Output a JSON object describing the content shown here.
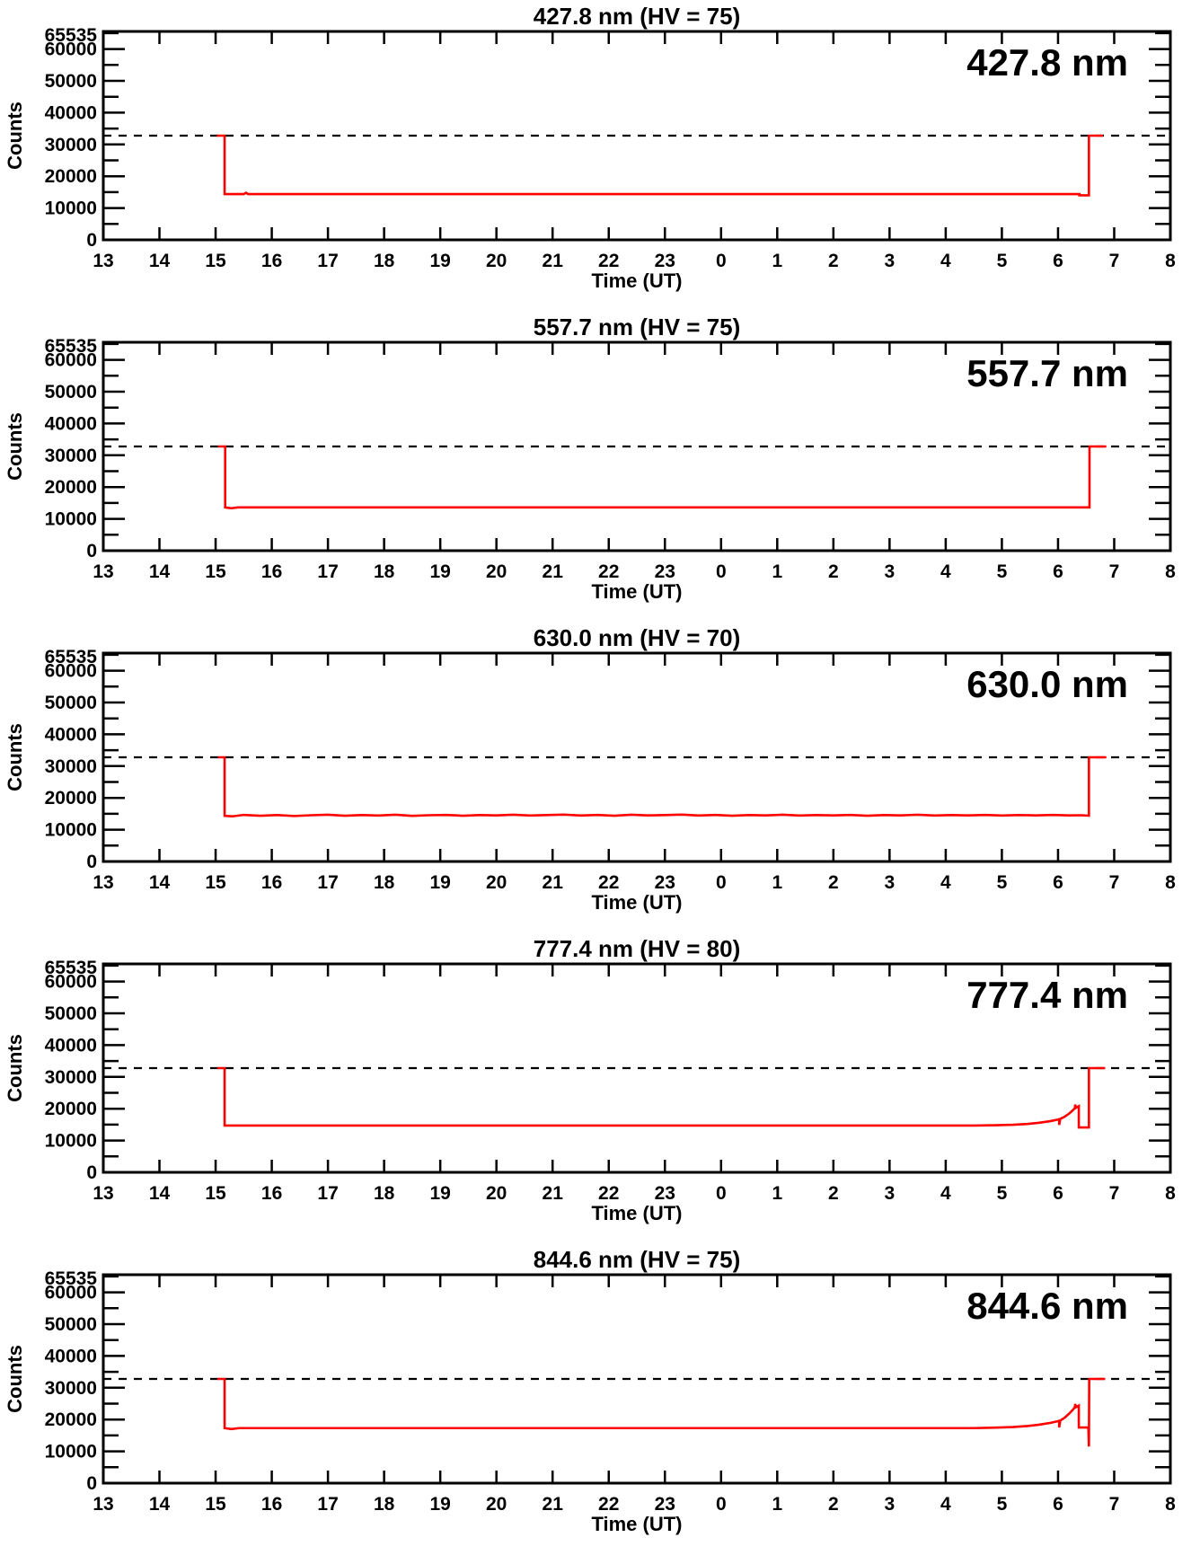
{
  "page": {
    "background": "#ffffff"
  },
  "chart_data": {
    "type": "line",
    "xlabel": "Time (UT)",
    "ylabel": "Counts",
    "x_start_hour": 13,
    "x_end_hour": 32,
    "x_tick_labels": [
      "13",
      "14",
      "15",
      "16",
      "17",
      "18",
      "19",
      "20",
      "21",
      "22",
      "23",
      "0",
      "1",
      "2",
      "3",
      "4",
      "5",
      "6",
      "7",
      "8"
    ],
    "ylim": [
      0,
      65535
    ],
    "y_major_step": 10000,
    "y_minor_step": 5000,
    "y_major_tick_labels": [
      "0",
      "10000",
      "20000",
      "30000",
      "40000",
      "50000",
      "60000"
    ],
    "y_top_tick_label": "65535",
    "dashed_threshold": 32767,
    "grid": false,
    "line_color": "#ff0000",
    "axis_color": "#000000",
    "threshold_line_color": "#000000",
    "panels": [
      {
        "title": "427.8 nm (HV = 75)",
        "corner_label": "427.8 nm",
        "series_name": "427.8 nm counts",
        "points": [
          [
            15.02,
            32767
          ],
          [
            15.16,
            32767
          ],
          [
            15.16,
            14400
          ],
          [
            15.5,
            14400
          ],
          [
            15.54,
            14800
          ],
          [
            15.58,
            14400
          ],
          [
            30.38,
            14400
          ],
          [
            30.38,
            14000
          ],
          [
            30.55,
            14000
          ],
          [
            30.55,
            32767
          ],
          [
            30.8,
            32767
          ]
        ]
      },
      {
        "title": "557.7 nm (HV = 75)",
        "corner_label": "557.7 nm",
        "series_name": "557.7 nm counts",
        "points": [
          [
            15.04,
            32767
          ],
          [
            15.17,
            32767
          ],
          [
            15.17,
            13600
          ],
          [
            15.28,
            13350
          ],
          [
            15.4,
            13600
          ],
          [
            30.56,
            13600
          ],
          [
            30.56,
            32767
          ],
          [
            30.86,
            32767
          ]
        ]
      },
      {
        "title": "630.0 nm (HV = 70)",
        "corner_label": "630.0 nm",
        "series_name": "630.0 nm counts",
        "points": [
          [
            15.04,
            32767
          ],
          [
            15.16,
            32767
          ],
          [
            15.16,
            14350
          ],
          [
            15.3,
            14200
          ],
          [
            15.5,
            14650
          ],
          [
            15.8,
            14400
          ],
          [
            16.1,
            14600
          ],
          [
            16.4,
            14300
          ],
          [
            16.7,
            14550
          ],
          [
            17.0,
            14700
          ],
          [
            17.3,
            14400
          ],
          [
            17.6,
            14600
          ],
          [
            17.9,
            14450
          ],
          [
            18.2,
            14700
          ],
          [
            18.5,
            14350
          ],
          [
            18.8,
            14550
          ],
          [
            19.1,
            14650
          ],
          [
            19.4,
            14400
          ],
          [
            19.7,
            14600
          ],
          [
            20.0,
            14500
          ],
          [
            20.3,
            14700
          ],
          [
            20.6,
            14450
          ],
          [
            20.9,
            14600
          ],
          [
            21.2,
            14750
          ],
          [
            21.5,
            14450
          ],
          [
            21.8,
            14650
          ],
          [
            22.1,
            14400
          ],
          [
            22.4,
            14700
          ],
          [
            22.7,
            14500
          ],
          [
            23.0,
            14600
          ],
          [
            23.3,
            14750
          ],
          [
            23.6,
            14450
          ],
          [
            23.9,
            14650
          ],
          [
            24.2,
            14400
          ],
          [
            24.5,
            14600
          ],
          [
            24.8,
            14500
          ],
          [
            25.1,
            14700
          ],
          [
            25.4,
            14450
          ],
          [
            25.7,
            14600
          ],
          [
            26.0,
            14500
          ],
          [
            26.3,
            14650
          ],
          [
            26.6,
            14400
          ],
          [
            26.9,
            14600
          ],
          [
            27.2,
            14500
          ],
          [
            27.5,
            14700
          ],
          [
            27.8,
            14450
          ],
          [
            28.1,
            14600
          ],
          [
            28.4,
            14500
          ],
          [
            28.7,
            14650
          ],
          [
            29.0,
            14450
          ],
          [
            29.3,
            14600
          ],
          [
            29.6,
            14500
          ],
          [
            29.9,
            14650
          ],
          [
            30.2,
            14500
          ],
          [
            30.42,
            14550
          ],
          [
            30.55,
            14400
          ],
          [
            30.55,
            32767
          ],
          [
            30.86,
            32767
          ]
        ]
      },
      {
        "title": "777.4 nm (HV = 80)",
        "corner_label": "777.4 nm",
        "series_name": "777.4 nm counts",
        "points": [
          [
            15.03,
            32767
          ],
          [
            15.16,
            32767
          ],
          [
            15.16,
            14700
          ],
          [
            28.5,
            14700
          ],
          [
            28.9,
            14800
          ],
          [
            29.2,
            14950
          ],
          [
            29.45,
            15200
          ],
          [
            29.65,
            15550
          ],
          [
            29.85,
            16050
          ],
          [
            30.0,
            16600
          ],
          [
            30.02,
            16700
          ],
          [
            30.02,
            14900
          ],
          [
            30.04,
            16800
          ],
          [
            30.12,
            17500
          ],
          [
            30.2,
            18500
          ],
          [
            30.27,
            19600
          ],
          [
            30.3,
            20200
          ],
          [
            30.305,
            21300
          ],
          [
            30.32,
            20300
          ],
          [
            30.36,
            20700
          ],
          [
            30.37,
            20800
          ],
          [
            30.37,
            14100
          ],
          [
            30.55,
            14100
          ],
          [
            30.55,
            32767
          ],
          [
            30.84,
            32767
          ]
        ]
      },
      {
        "title": "844.6 nm (HV = 75)",
        "corner_label": "844.6 nm",
        "series_name": "844.6 nm counts",
        "points": [
          [
            15.03,
            32767
          ],
          [
            15.16,
            32767
          ],
          [
            15.16,
            17300
          ],
          [
            15.28,
            17000
          ],
          [
            15.42,
            17300
          ],
          [
            28.5,
            17300
          ],
          [
            28.9,
            17450
          ],
          [
            29.2,
            17650
          ],
          [
            29.45,
            17950
          ],
          [
            29.65,
            18350
          ],
          [
            29.85,
            18900
          ],
          [
            30.0,
            19500
          ],
          [
            30.02,
            19600
          ],
          [
            30.02,
            17500
          ],
          [
            30.04,
            19700
          ],
          [
            30.12,
            20600
          ],
          [
            30.2,
            21900
          ],
          [
            30.27,
            23200
          ],
          [
            30.3,
            23900
          ],
          [
            30.305,
            24900
          ],
          [
            30.32,
            23900
          ],
          [
            30.36,
            24300
          ],
          [
            30.37,
            24400
          ],
          [
            30.37,
            17500
          ],
          [
            30.54,
            17500
          ],
          [
            30.55,
            11500
          ],
          [
            30.555,
            32767
          ],
          [
            30.84,
            32767
          ]
        ]
      }
    ]
  }
}
